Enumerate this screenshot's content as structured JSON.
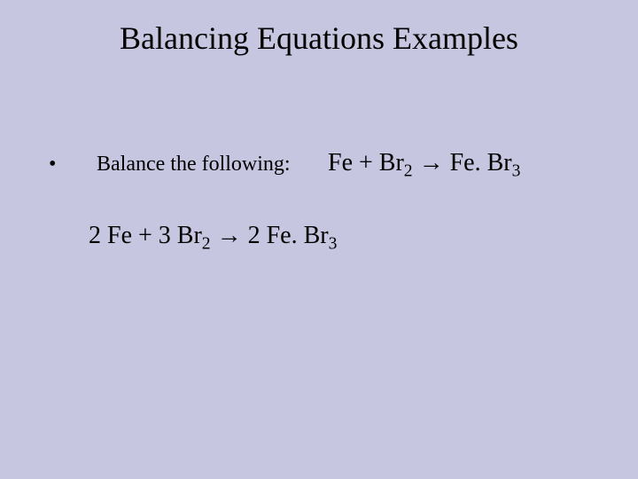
{
  "background_color": "#c6c6e1",
  "text_color": "#000000",
  "title": "Balancing Equations Examples",
  "title_fontsize": 36,
  "bullet_symbol": "•",
  "prompt": "Balance the following:",
  "prompt_fontsize": 24,
  "eq_fontsize": 28,
  "arrow": "→",
  "unbalanced": {
    "lhs_1": "Fe",
    "plus": " + ",
    "lhs_2_base": "Br",
    "lhs_2_sub": "2",
    "rhs_prefix": "Fe. ",
    "rhs_base": "Br",
    "rhs_sub": "3"
  },
  "balanced": {
    "c1": "2",
    "lhs_1": " Fe",
    "plus": " + ",
    "c2": "3",
    "lhs_2_base": " Br",
    "lhs_2_sub": "2",
    "c3": " 2",
    "rhs_prefix": " Fe. ",
    "rhs_base": "Br",
    "rhs_sub": "3"
  }
}
